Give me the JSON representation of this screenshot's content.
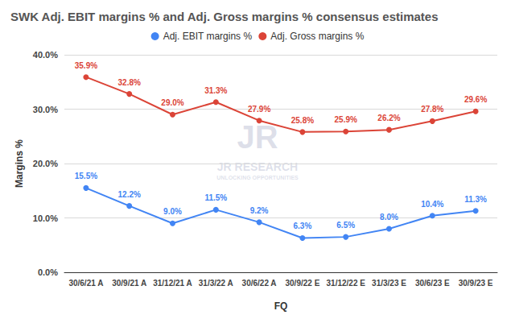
{
  "chart_data": {
    "type": "line",
    "title": "SWK Adj. EBIT margins % and Adj. Gross margins % consensus estimates",
    "x_label": "FQ",
    "y_label": "Margins %",
    "categories": [
      "30/6/21 A",
      "30/9/21 A",
      "31/12/21 A",
      "31/3/22 A",
      "30/6/22 A",
      "30/9/22 E",
      "31/12/22 E",
      "31/3/23 E",
      "30/6/23 E",
      "30/9/23 E"
    ],
    "series": [
      {
        "name": "Adj. EBIT margins %",
        "color": "#4285f4",
        "marker": "circle",
        "values": [
          15.5,
          12.2,
          9.0,
          11.5,
          9.2,
          6.3,
          6.5,
          8.0,
          10.4,
          11.3
        ],
        "value_labels": [
          "15.5%",
          "12.2%",
          "9.0%",
          "11.5%",
          "9.2%",
          "6.3%",
          "6.5%",
          "8.0%",
          "10.4%",
          "11.3%"
        ]
      },
      {
        "name": "Adj. Gross margins %",
        "color": "#db4437",
        "marker": "circle",
        "values": [
          35.9,
          32.8,
          29.0,
          31.3,
          27.9,
          25.8,
          25.9,
          26.2,
          27.8,
          29.6
        ],
        "value_labels": [
          "35.9%",
          "32.8%",
          "29.0%",
          "31.3%",
          "27.9%",
          "25.8%",
          "25.9%",
          "26.2%",
          "27.8%",
          "29.6%"
        ]
      }
    ],
    "ylim": [
      0,
      40
    ],
    "yticks": [
      {
        "value": 0,
        "label": "0.0%"
      },
      {
        "value": 10,
        "label": "10.0%"
      },
      {
        "value": 20,
        "label": "20.0%"
      },
      {
        "value": 30,
        "label": "30.0%"
      },
      {
        "value": 40,
        "label": "40.0%"
      }
    ],
    "grid": true,
    "legend": "top",
    "data_labels": true,
    "annotations": [
      "JR",
      "JR RESEARCH",
      "UNLOCKING OPPORTUNITIES"
    ]
  }
}
